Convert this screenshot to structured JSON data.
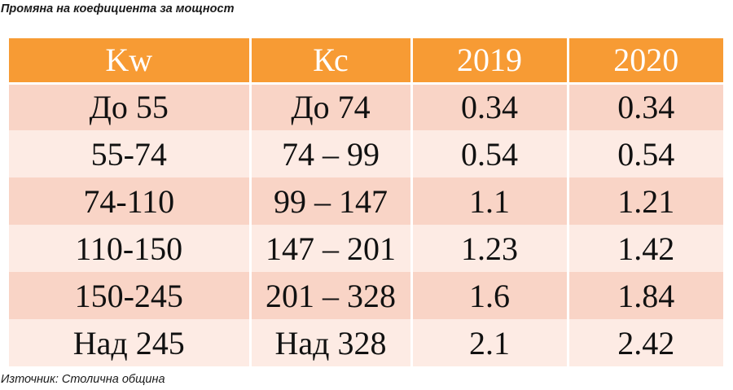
{
  "title": "Промяна на коефициента за мощност",
  "table": {
    "headers": [
      "Kw",
      "Кс",
      "2019",
      "2020"
    ],
    "rows": [
      [
        "До 55",
        "До 74",
        "0.34",
        "0.34"
      ],
      [
        "55-74",
        "74 – 99",
        "0.54",
        "0.54"
      ],
      [
        "74-110",
        "99 – 147",
        "1.1",
        "1.21"
      ],
      [
        "110-150",
        "147 – 201",
        "1.23",
        "1.42"
      ],
      [
        "150-245",
        "201 – 328",
        "1.6",
        "1.84"
      ],
      [
        "Над 245",
        "Над 328",
        "2.1",
        "2.42"
      ]
    ]
  },
  "source": "Източник: Столична община",
  "colors": {
    "header_bg": "#f79b34",
    "row_dark": "#f9d4c6",
    "row_light": "#fdebe4",
    "header_text": "#ffffff"
  }
}
